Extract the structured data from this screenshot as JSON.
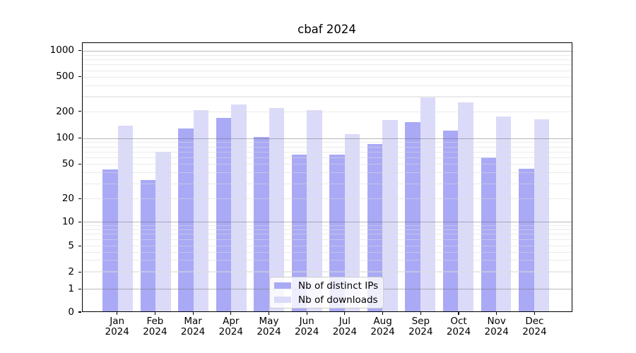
{
  "chart_data": {
    "type": "bar",
    "title": "cbaf 2024",
    "year": "2024",
    "months": [
      "Jan",
      "Feb",
      "Mar",
      "Apr",
      "May",
      "Jun",
      "Jul",
      "Aug",
      "Sep",
      "Oct",
      "Nov",
      "Dec"
    ],
    "series": [
      {
        "name": "Nb of distinct IPs",
        "color": "#a9a9f6",
        "values": [
          43,
          33,
          130,
          170,
          103,
          65,
          65,
          86,
          152,
          121,
          60,
          44
        ]
      },
      {
        "name": "Nb of downloads",
        "color": "#dbdbf9",
        "values": [
          140,
          70,
          210,
          240,
          220,
          210,
          112,
          162,
          290,
          257,
          177,
          163
        ]
      }
    ],
    "yticks": [
      0,
      1,
      2,
      5,
      10,
      20,
      50,
      100,
      200,
      500,
      1000
    ],
    "ylim": [
      0,
      1200
    ],
    "yscale": "symlog",
    "grid": "horizontal major+minor",
    "legend_position": "lower center"
  },
  "colors": {
    "major_grid": "#b5b5b5",
    "minor_grid": "#ebebeb",
    "axis": "#000000",
    "background": "#ffffff"
  }
}
